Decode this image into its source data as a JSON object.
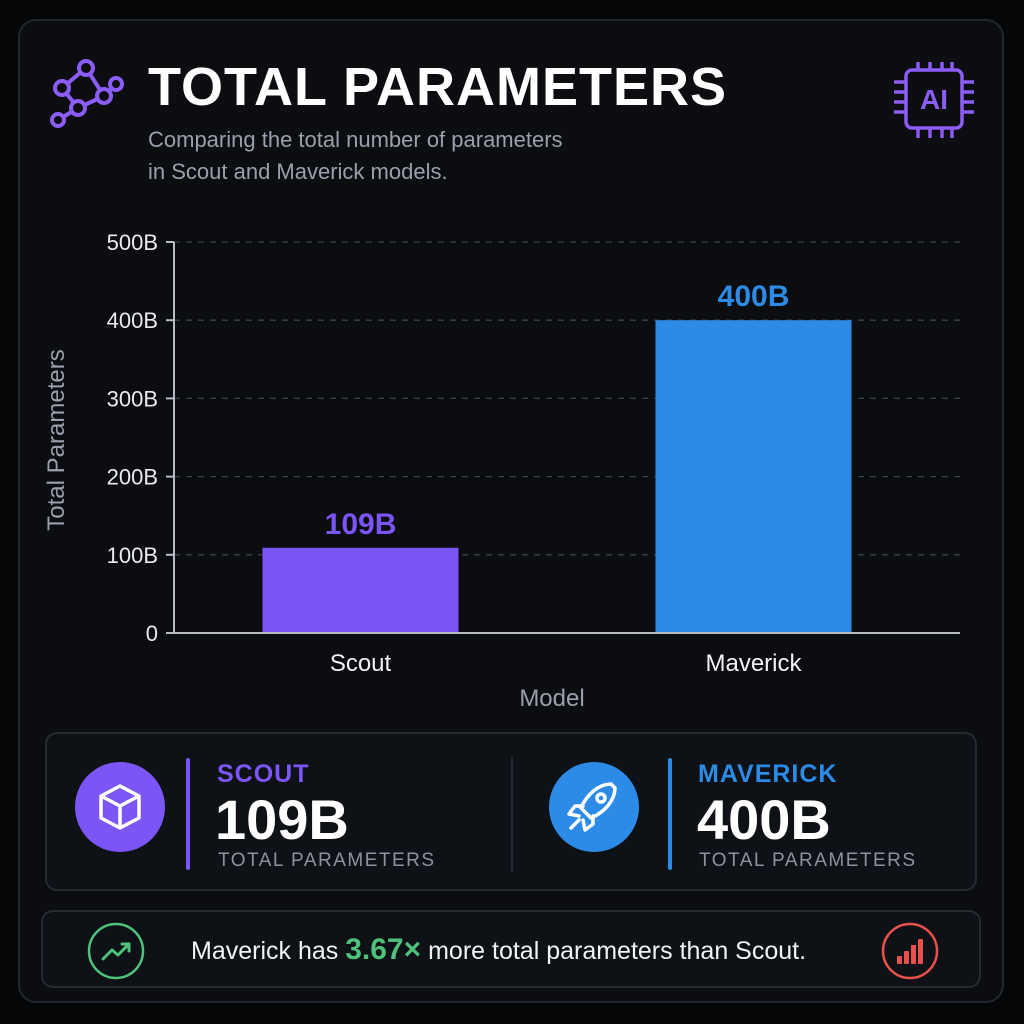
{
  "header": {
    "title": "TOTAL PARAMETERS",
    "subtitle_line1": "Comparing the total number of parameters",
    "subtitle_line2": "in Scout and Maverick models.",
    "badge_text": "AI"
  },
  "colors": {
    "scout": "#7c55f7",
    "maverick": "#2b8be6",
    "positive": "#4ec27a",
    "alert": "#e8524a"
  },
  "chart_data": {
    "type": "bar",
    "categories": [
      "Scout",
      "Maverick"
    ],
    "values": [
      109,
      400
    ],
    "data_labels": [
      "109B",
      "400B"
    ],
    "xlabel": "Model",
    "ylabel": "Total Parameters",
    "ylim": [
      0,
      500
    ],
    "yticks": [
      0,
      100,
      200,
      300,
      400,
      500
    ],
    "ytick_labels": [
      "0",
      "100B",
      "200B",
      "300B",
      "400B",
      "500B"
    ],
    "grid": true,
    "bar_colors": [
      "#7c55f7",
      "#2b8be6"
    ]
  },
  "stats": [
    {
      "name": "SCOUT",
      "value": "109B",
      "sub": "TOTAL PARAMETERS",
      "icon": "cube-icon"
    },
    {
      "name": "MAVERICK",
      "value": "400B",
      "sub": "TOTAL PARAMETERS",
      "icon": "rocket-icon"
    }
  ],
  "footer": {
    "text_before": "Maverick has",
    "ratio": "3.67×",
    "text_after": "more total parameters than Scout.",
    "left_icon": "trend-up-icon",
    "right_icon": "bar-chart-icon"
  }
}
